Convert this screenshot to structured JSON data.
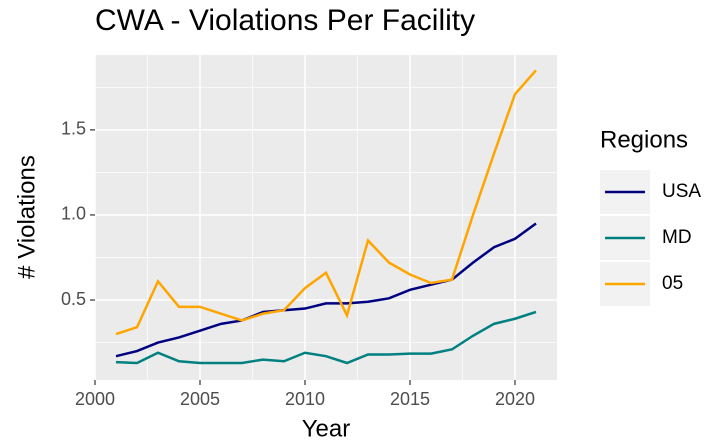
{
  "chart_data": {
    "type": "line",
    "title": "CWA - Violations Per Facility",
    "x_label": "Year",
    "y_label": "# Violations",
    "legend_title": "Regions",
    "x": [
      2001,
      2002,
      2003,
      2004,
      2005,
      2006,
      2007,
      2008,
      2009,
      2010,
      2011,
      2012,
      2013,
      2014,
      2015,
      2016,
      2017,
      2018,
      2019,
      2020,
      2021
    ],
    "series": [
      {
        "name": "USA",
        "color": "#000080",
        "values": [
          0.17,
          0.2,
          0.25,
          0.28,
          0.32,
          0.36,
          0.38,
          0.43,
          0.44,
          0.45,
          0.48,
          0.48,
          0.49,
          0.51,
          0.56,
          0.59,
          0.62,
          0.72,
          0.81,
          0.86,
          0.95
        ]
      },
      {
        "name": "MD",
        "color": "#008080",
        "values": [
          0.135,
          0.13,
          0.19,
          0.14,
          0.13,
          0.13,
          0.13,
          0.15,
          0.14,
          0.19,
          0.17,
          0.13,
          0.18,
          0.18,
          0.185,
          0.185,
          0.21,
          0.29,
          0.36,
          0.39,
          0.43
        ]
      },
      {
        "name": "05",
        "color": "#FFA500",
        "values": [
          0.3,
          0.34,
          0.61,
          0.46,
          0.46,
          0.42,
          0.38,
          0.42,
          0.44,
          0.57,
          0.66,
          0.41,
          0.85,
          0.72,
          0.65,
          0.6,
          0.62,
          1.0,
          1.36,
          1.71,
          1.85
        ]
      }
    ],
    "xlim": [
      2000,
      2022
    ],
    "xticks": [
      2000,
      2005,
      2010,
      2015,
      2020
    ],
    "ylim": [
      0.03,
      1.94
    ],
    "yticks": [
      0.5,
      {
        "value": 1,
        "label": "1.0"
      },
      1.5
    ],
    "grid": true,
    "legend": "right"
  }
}
